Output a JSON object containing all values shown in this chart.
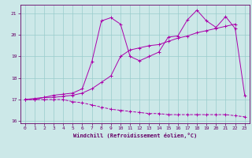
{
  "xlabel": "Windchill (Refroidissement éolien,°C)",
  "bg_color": "#cce8e8",
  "line_color": "#aa00aa",
  "grid_color": "#99cccc",
  "spine_color": "#660066",
  "xlim": [
    -0.5,
    23.5
  ],
  "ylim": [
    15.9,
    21.4
  ],
  "yticks": [
    16,
    17,
    18,
    19,
    20,
    21
  ],
  "xticks": [
    0,
    1,
    2,
    3,
    4,
    5,
    6,
    7,
    8,
    9,
    10,
    11,
    12,
    13,
    14,
    15,
    16,
    17,
    18,
    19,
    20,
    21,
    22,
    23
  ],
  "series1_x": [
    0,
    1,
    2,
    3,
    4,
    5,
    6,
    7,
    8,
    9,
    10,
    11,
    12,
    13,
    14,
    15,
    16,
    17,
    18,
    19,
    20,
    21,
    22,
    23
  ],
  "series1_y": [
    17.0,
    17.0,
    17.0,
    17.0,
    17.0,
    16.9,
    16.85,
    16.75,
    16.65,
    16.55,
    16.5,
    16.45,
    16.4,
    16.35,
    16.35,
    16.3,
    16.3,
    16.3,
    16.3,
    16.3,
    16.3,
    16.3,
    16.25,
    16.2
  ],
  "series2_x": [
    0,
    1,
    2,
    3,
    4,
    5,
    6,
    7,
    8,
    9,
    10,
    11,
    12,
    13,
    14,
    15,
    16,
    17,
    18,
    19,
    20,
    21,
    22
  ],
  "series2_y": [
    17.0,
    17.05,
    17.1,
    17.1,
    17.15,
    17.2,
    17.3,
    17.5,
    17.8,
    18.1,
    19.0,
    19.3,
    19.4,
    19.5,
    19.55,
    19.7,
    19.85,
    19.95,
    20.1,
    20.2,
    20.3,
    20.4,
    20.5
  ],
  "series3_x": [
    0,
    1,
    2,
    3,
    4,
    5,
    6,
    7,
    8,
    9,
    10,
    11,
    12,
    13,
    14,
    15,
    16,
    17,
    18,
    19,
    20,
    21,
    22,
    23
  ],
  "series3_y": [
    17.0,
    17.0,
    17.1,
    17.2,
    17.25,
    17.3,
    17.5,
    18.75,
    20.65,
    20.8,
    20.5,
    19.0,
    18.8,
    19.0,
    19.2,
    19.9,
    19.95,
    20.7,
    21.15,
    20.65,
    20.35,
    20.85,
    20.3,
    17.2
  ]
}
